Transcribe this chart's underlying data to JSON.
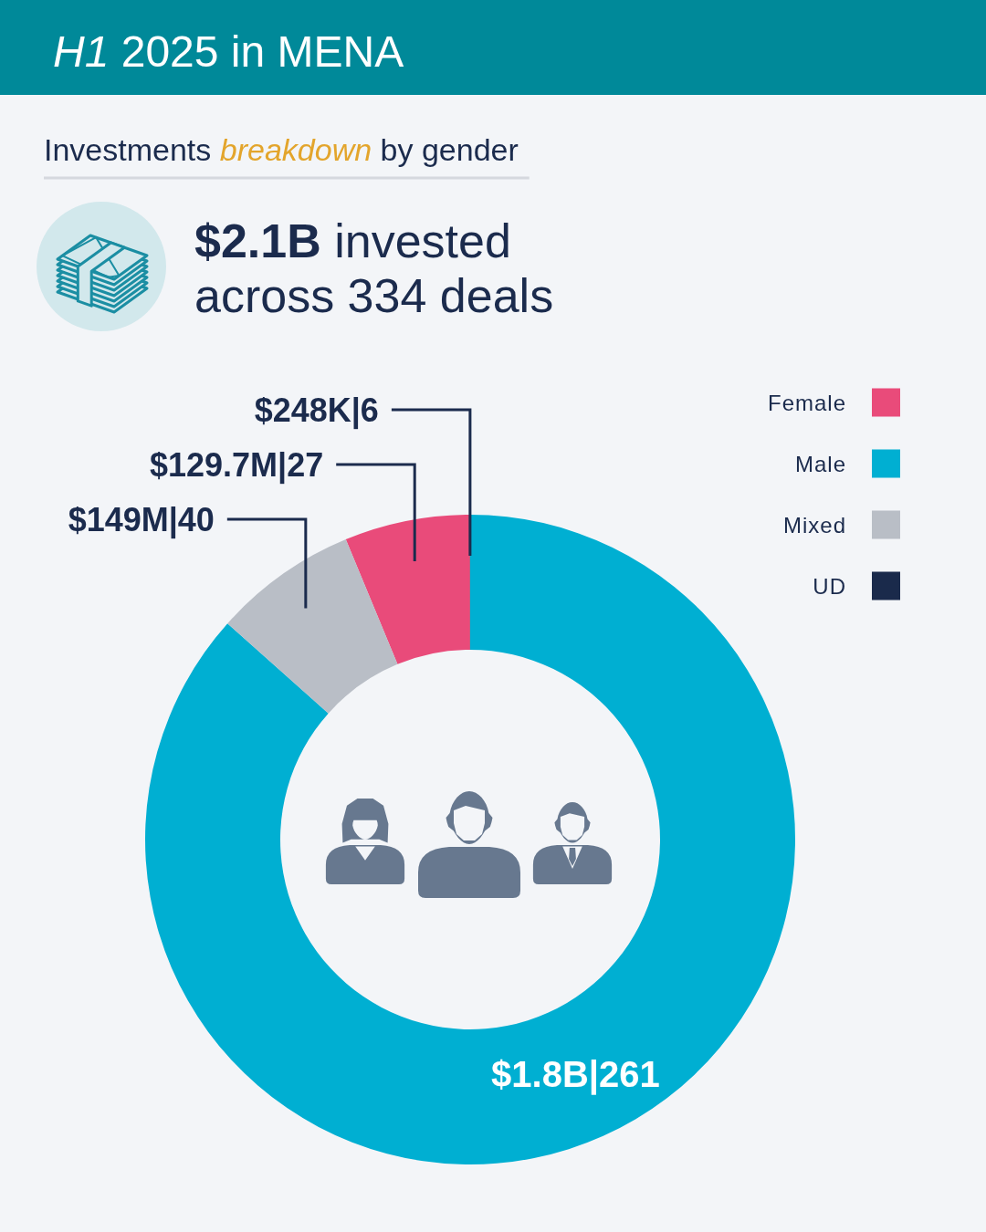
{
  "chart_data": {
    "type": "donut",
    "title": "H1 2025 in MENA",
    "subtitle": "Investments breakdown by gender",
    "annotations": [
      "$2.1B invested across 334 deals"
    ],
    "categories": [
      "Female",
      "Male",
      "Mixed",
      "UD"
    ],
    "values": [
      129700000,
      1800000000,
      149000000,
      248000
    ],
    "colors": [
      "#e94b7a",
      "#00afd2",
      "#b9bec6",
      "#1a2a4b"
    ],
    "value_labels": [
      "$129.7M|27",
      "$1.8B|261",
      "$149M|40",
      "$248K|6"
    ],
    "legend": "top right"
  }
}
